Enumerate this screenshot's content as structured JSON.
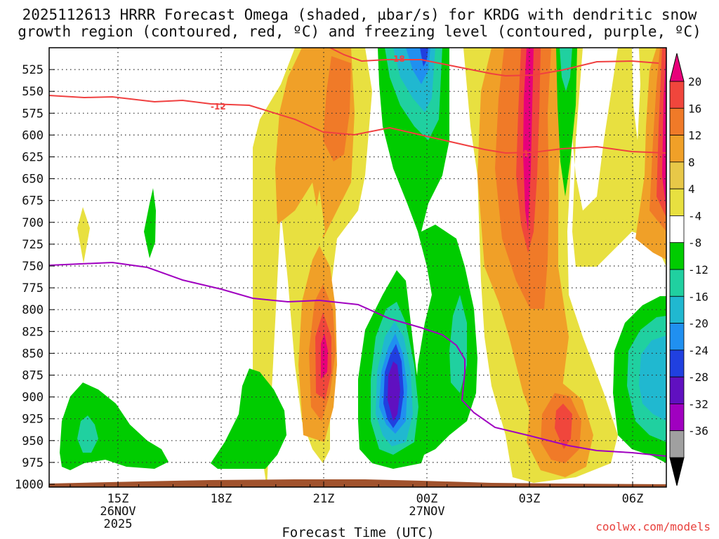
{
  "title": {
    "line1": "2025112613 HRRR Forecast Omega (shaded, µbar/s) for KRDG with dendritic snow",
    "line2": "growth region (contoured, red, ºC) and freezing level (contoured, purple, ºC)"
  },
  "credit": "coolwx.com/models",
  "chart_data": {
    "type": "heatmap",
    "title": "2025112613 HRRR Forecast Omega (shaded, µbar/s) for KRDG with dendritic snow growth region (contoured, red, ºC) and freezing level (contoured, purple, ºC)",
    "xlabel": "Forecast Time (UTC)",
    "ylabel": "",
    "x_range_hours": [
      13.0,
      7.0
    ],
    "y_axis": {
      "ticks": [
        525,
        550,
        575,
        600,
        625,
        650,
        675,
        700,
        725,
        750,
        775,
        800,
        825,
        850,
        875,
        900,
        925,
        950,
        975,
        1000
      ],
      "range": [
        500,
        1000
      ],
      "inverted": true
    },
    "x_ticks": [
      {
        "label": "15Z",
        "sub": [
          "26NOV",
          "2025"
        ]
      },
      {
        "label": "18Z",
        "sub": []
      },
      {
        "label": "21Z",
        "sub": []
      },
      {
        "label": "00Z",
        "sub": [
          "27NOV"
        ]
      },
      {
        "label": "03Z",
        "sub": []
      },
      {
        "label": "06Z",
        "sub": []
      }
    ],
    "colorbar": {
      "levels": [
        "20",
        "16",
        "12",
        "8",
        "4",
        "-4",
        "-8",
        "-12",
        "-16",
        "-20",
        "-24",
        "-28",
        "-32",
        "-36"
      ],
      "colors": [
        "#e8007a",
        "#f0463c",
        "#f07a28",
        "#f0a028",
        "#e8c848",
        "#e8e040",
        "#ffffff",
        "#00cc00",
        "#20d0a0",
        "#20b8d0",
        "#2090f0",
        "#2040e0",
        "#6010c0",
        "#a000c0",
        "#a0a0a0",
        "#000000"
      ]
    },
    "contours": [
      {
        "name": "dendritic-snow-growth",
        "color": "#f04040",
        "labels": [
          "-12",
          "-18",
          "-1"
        ]
      },
      {
        "name": "freezing-level",
        "color": "#a000c0"
      }
    ],
    "terrain_color": "#a0522d"
  }
}
